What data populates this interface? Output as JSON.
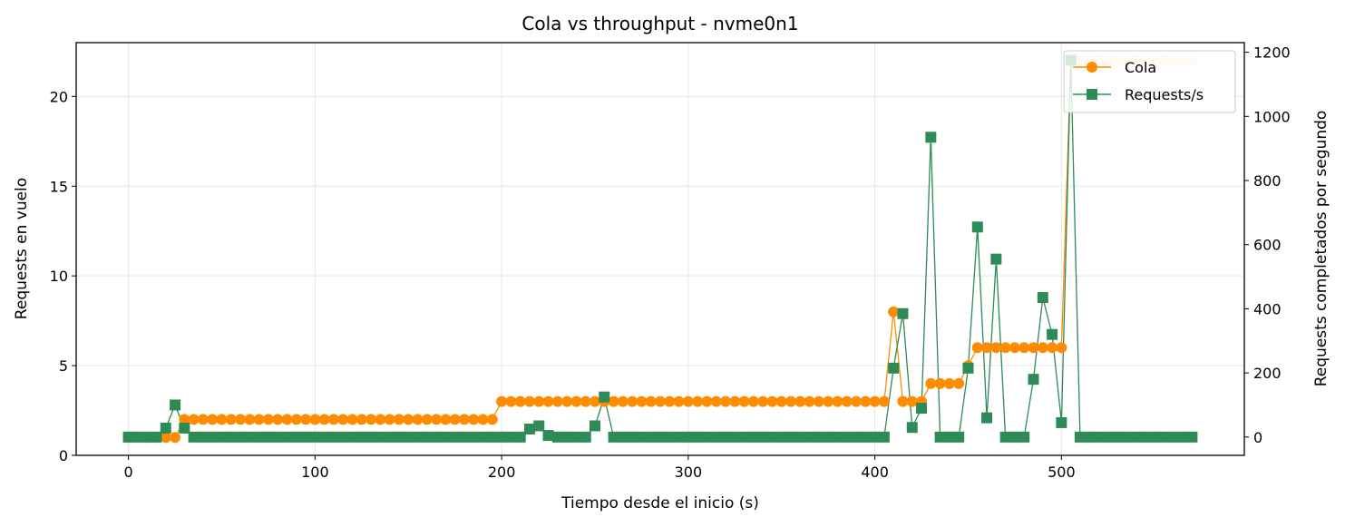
{
  "chart_data": {
    "type": "line",
    "title": "Cola vs throughput - nvme0n1",
    "xlabel": "Tiempo desde el inicio (s)",
    "ylabel_left": "Requests en vuelo",
    "ylabel_right": "Requests completados por segundo",
    "xlim": [
      -28,
      598
    ],
    "ylim_left": [
      0,
      23
    ],
    "ylim_right": [
      -57,
      1230
    ],
    "x_ticks": [
      "0",
      "100",
      "200",
      "300",
      "400",
      "500"
    ],
    "y_ticks_left": [
      "0",
      "5",
      "10",
      "15",
      "20"
    ],
    "y_ticks_right": [
      "0",
      "200",
      "400",
      "600",
      "800",
      "1000",
      "1200"
    ],
    "grid": true,
    "legend_position": "upper right",
    "colors": {
      "cola": "#ff8c00",
      "requests": "#2e8b57",
      "cola_faded": "#ffe3c2"
    },
    "series": [
      {
        "name": "Cola",
        "axis": "left",
        "marker": "circle",
        "points": [
          [
            0,
            1
          ],
          [
            5,
            1
          ],
          [
            10,
            1
          ],
          [
            15,
            1
          ],
          [
            20,
            1
          ],
          [
            25,
            1
          ],
          [
            30,
            2
          ],
          [
            35,
            2
          ],
          [
            40,
            2
          ],
          [
            45,
            2
          ],
          [
            50,
            2
          ],
          [
            55,
            2
          ],
          [
            60,
            2
          ],
          [
            65,
            2
          ],
          [
            70,
            2
          ],
          [
            75,
            2
          ],
          [
            80,
            2
          ],
          [
            85,
            2
          ],
          [
            90,
            2
          ],
          [
            95,
            2
          ],
          [
            100,
            2
          ],
          [
            105,
            2
          ],
          [
            110,
            2
          ],
          [
            115,
            2
          ],
          [
            120,
            2
          ],
          [
            125,
            2
          ],
          [
            130,
            2
          ],
          [
            135,
            2
          ],
          [
            140,
            2
          ],
          [
            145,
            2
          ],
          [
            150,
            2
          ],
          [
            155,
            2
          ],
          [
            160,
            2
          ],
          [
            165,
            2
          ],
          [
            170,
            2
          ],
          [
            175,
            2
          ],
          [
            180,
            2
          ],
          [
            185,
            2
          ],
          [
            190,
            2
          ],
          [
            195,
            2
          ],
          [
            200,
            3
          ],
          [
            205,
            3
          ],
          [
            210,
            3
          ],
          [
            215,
            3
          ],
          [
            220,
            3
          ],
          [
            225,
            3
          ],
          [
            230,
            3
          ],
          [
            235,
            3
          ],
          [
            240,
            3
          ],
          [
            245,
            3
          ],
          [
            250,
            3
          ],
          [
            255,
            3
          ],
          [
            260,
            3
          ],
          [
            265,
            3
          ],
          [
            270,
            3
          ],
          [
            275,
            3
          ],
          [
            280,
            3
          ],
          [
            285,
            3
          ],
          [
            290,
            3
          ],
          [
            295,
            3
          ],
          [
            300,
            3
          ],
          [
            305,
            3
          ],
          [
            310,
            3
          ],
          [
            315,
            3
          ],
          [
            320,
            3
          ],
          [
            325,
            3
          ],
          [
            330,
            3
          ],
          [
            335,
            3
          ],
          [
            340,
            3
          ],
          [
            345,
            3
          ],
          [
            350,
            3
          ],
          [
            355,
            3
          ],
          [
            360,
            3
          ],
          [
            365,
            3
          ],
          [
            370,
            3
          ],
          [
            375,
            3
          ],
          [
            380,
            3
          ],
          [
            385,
            3
          ],
          [
            390,
            3
          ],
          [
            395,
            3
          ],
          [
            400,
            3
          ],
          [
            405,
            3
          ],
          [
            410,
            8
          ],
          [
            415,
            3
          ],
          [
            420,
            3
          ],
          [
            425,
            3
          ],
          [
            430,
            4
          ],
          [
            435,
            4
          ],
          [
            440,
            4
          ],
          [
            445,
            4
          ],
          [
            450,
            5
          ],
          [
            455,
            6
          ],
          [
            460,
            6
          ],
          [
            465,
            6
          ],
          [
            470,
            6
          ],
          [
            475,
            6
          ],
          [
            480,
            6
          ],
          [
            485,
            6
          ],
          [
            490,
            6
          ],
          [
            495,
            6
          ],
          [
            500,
            6
          ],
          [
            505,
            22
          ],
          [
            510,
            22
          ],
          [
            515,
            22
          ],
          [
            520,
            22
          ],
          [
            525,
            22
          ],
          [
            530,
            22
          ],
          [
            535,
            22
          ],
          [
            540,
            22
          ],
          [
            545,
            22
          ],
          [
            550,
            22
          ],
          [
            555,
            22
          ],
          [
            560,
            22
          ],
          [
            565,
            22
          ],
          [
            570,
            22
          ]
        ]
      },
      {
        "name": "Requests/s",
        "axis": "right",
        "marker": "square",
        "points": [
          [
            0,
            0
          ],
          [
            5,
            0
          ],
          [
            10,
            0
          ],
          [
            15,
            0
          ],
          [
            20,
            28
          ],
          [
            25,
            100
          ],
          [
            30,
            28
          ],
          [
            35,
            0
          ],
          [
            40,
            0
          ],
          [
            45,
            0
          ],
          [
            50,
            0
          ],
          [
            55,
            0
          ],
          [
            60,
            0
          ],
          [
            65,
            0
          ],
          [
            70,
            0
          ],
          [
            75,
            0
          ],
          [
            80,
            0
          ],
          [
            85,
            0
          ],
          [
            90,
            0
          ],
          [
            95,
            0
          ],
          [
            100,
            0
          ],
          [
            105,
            0
          ],
          [
            110,
            0
          ],
          [
            115,
            0
          ],
          [
            120,
            0
          ],
          [
            125,
            0
          ],
          [
            130,
            0
          ],
          [
            135,
            0
          ],
          [
            140,
            0
          ],
          [
            145,
            0
          ],
          [
            150,
            0
          ],
          [
            155,
            0
          ],
          [
            160,
            0
          ],
          [
            165,
            0
          ],
          [
            170,
            0
          ],
          [
            175,
            0
          ],
          [
            180,
            0
          ],
          [
            185,
            0
          ],
          [
            190,
            0
          ],
          [
            195,
            0
          ],
          [
            200,
            0
          ],
          [
            205,
            0
          ],
          [
            210,
            0
          ],
          [
            215,
            25
          ],
          [
            220,
            35
          ],
          [
            225,
            5
          ],
          [
            230,
            0
          ],
          [
            235,
            0
          ],
          [
            240,
            0
          ],
          [
            245,
            0
          ],
          [
            250,
            35
          ],
          [
            255,
            125
          ],
          [
            260,
            0
          ],
          [
            265,
            0
          ],
          [
            270,
            0
          ],
          [
            275,
            0
          ],
          [
            280,
            0
          ],
          [
            285,
            0
          ],
          [
            290,
            0
          ],
          [
            295,
            0
          ],
          [
            300,
            0
          ],
          [
            305,
            0
          ],
          [
            310,
            0
          ],
          [
            315,
            0
          ],
          [
            320,
            0
          ],
          [
            325,
            0
          ],
          [
            330,
            0
          ],
          [
            335,
            0
          ],
          [
            340,
            0
          ],
          [
            345,
            0
          ],
          [
            350,
            0
          ],
          [
            355,
            0
          ],
          [
            360,
            0
          ],
          [
            365,
            0
          ],
          [
            370,
            0
          ],
          [
            375,
            0
          ],
          [
            380,
            0
          ],
          [
            385,
            0
          ],
          [
            390,
            0
          ],
          [
            395,
            0
          ],
          [
            400,
            0
          ],
          [
            405,
            0
          ],
          [
            410,
            215
          ],
          [
            415,
            385
          ],
          [
            420,
            30
          ],
          [
            425,
            90
          ],
          [
            430,
            935
          ],
          [
            435,
            0
          ],
          [
            440,
            0
          ],
          [
            445,
            0
          ],
          [
            450,
            215
          ],
          [
            455,
            655
          ],
          [
            460,
            60
          ],
          [
            465,
            555
          ],
          [
            470,
            0
          ],
          [
            475,
            0
          ],
          [
            480,
            0
          ],
          [
            485,
            180
          ],
          [
            490,
            435
          ],
          [
            495,
            320
          ],
          [
            500,
            45
          ],
          [
            505,
            1175
          ],
          [
            510,
            0
          ],
          [
            515,
            0
          ],
          [
            520,
            0
          ],
          [
            525,
            0
          ],
          [
            530,
            0
          ],
          [
            535,
            0
          ],
          [
            540,
            0
          ],
          [
            545,
            0
          ],
          [
            550,
            0
          ],
          [
            555,
            0
          ],
          [
            560,
            0
          ],
          [
            565,
            0
          ],
          [
            570,
            0
          ]
        ]
      }
    ]
  }
}
